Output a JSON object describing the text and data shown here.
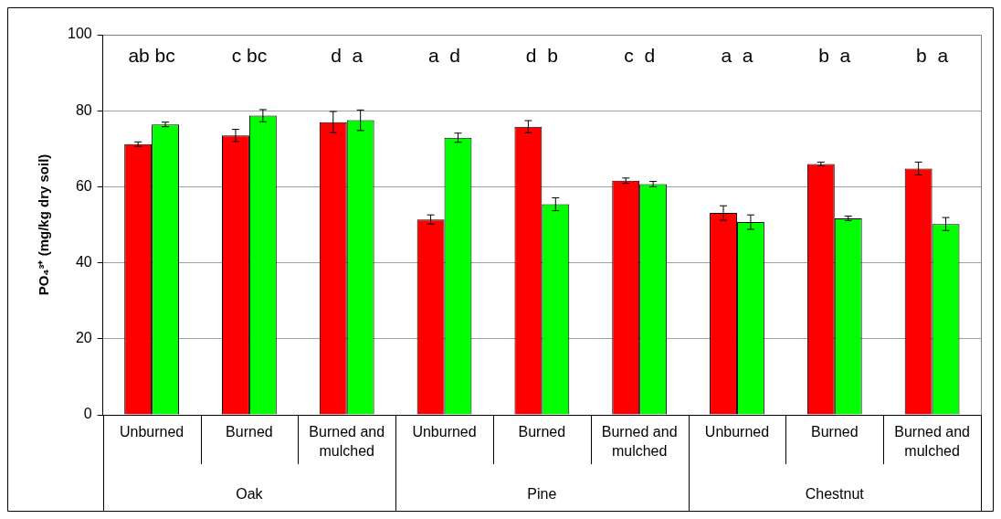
{
  "chart_data": {
    "type": "bar",
    "ylabel": "PO₄³⁺ (mg/kg dry soil)",
    "categories": [
      "Unburned",
      "Burned",
      "Burned and mulched",
      "Unburned",
      "Burned",
      "Burned and mulched",
      "Unburned",
      "Burned",
      "Burned and mulched"
    ],
    "series": [
      {
        "color": "#ff0000",
        "values": [
          71.2,
          73.5,
          77.0,
          51.4,
          75.8,
          61.6,
          53.1,
          66.0,
          64.8
        ],
        "errors": [
          0.6,
          1.6,
          2.8,
          1.2,
          1.6,
          0.7,
          1.9,
          0.5,
          1.7
        ]
      },
      {
        "color": "#00ff00",
        "values": [
          76.4,
          78.7,
          77.5,
          72.9,
          55.4,
          60.7,
          50.7,
          51.7,
          50.2
        ],
        "errors": [
          0.6,
          1.6,
          2.7,
          1.2,
          1.7,
          0.7,
          1.9,
          0.6,
          1.7
        ]
      }
    ],
    "ylim": [
      0,
      100
    ],
    "yticks": [
      0,
      20,
      40,
      60,
      80,
      100
    ],
    "grid": "y",
    "legend": false,
    "annotations": [
      "ab bc",
      "c bc",
      "d  a",
      "a  d",
      "d  b",
      "c  d",
      "a  a",
      "b  a",
      "b  a",
      "Oak",
      "Pine",
      "Chestnut"
    ]
  }
}
